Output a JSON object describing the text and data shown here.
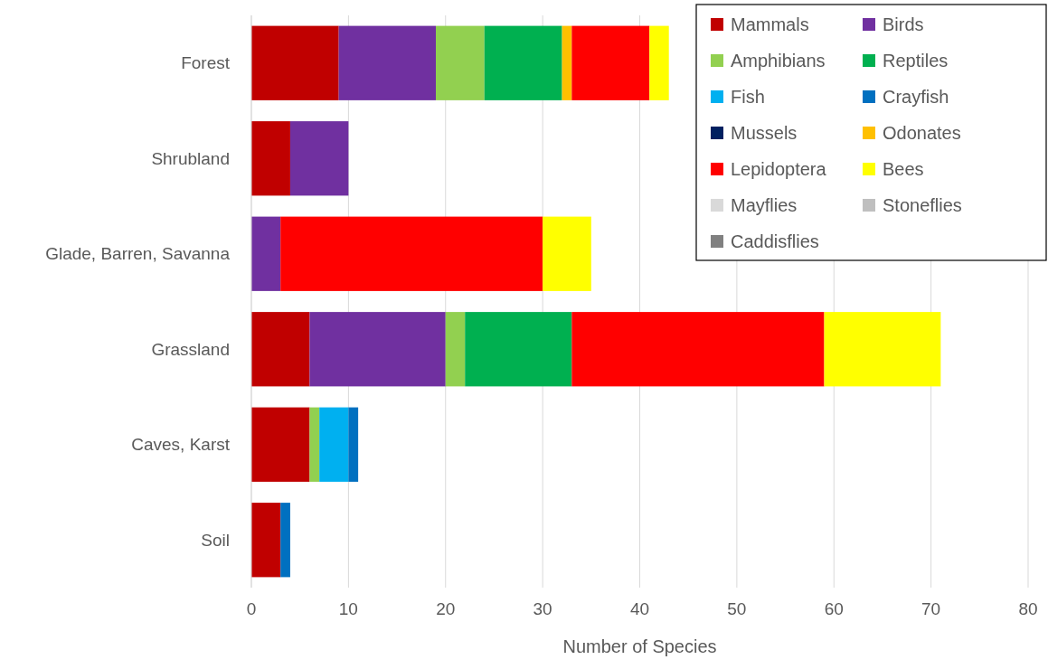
{
  "chart_data": {
    "type": "bar",
    "orientation": "horizontal",
    "stacked": true,
    "xlabel": "Number of Species",
    "categories": [
      "Forest",
      "Shrubland",
      "Glade, Barren, Savanna",
      "Grassland",
      "Caves, Karst",
      "Soil"
    ],
    "xlim": [
      0,
      80
    ],
    "xticks": [
      0,
      10,
      20,
      30,
      40,
      50,
      60,
      70,
      80
    ],
    "grid": "x",
    "legend": "top right",
    "series": [
      {
        "name": "Mammals",
        "color": "#c00000",
        "values": [
          9,
          4,
          0,
          6,
          6,
          3
        ]
      },
      {
        "name": "Birds",
        "color": "#7030a0",
        "values": [
          10,
          6,
          3,
          14,
          0,
          0
        ]
      },
      {
        "name": "Amphibians",
        "color": "#92d050",
        "values": [
          5,
          0,
          0,
          2,
          1,
          0
        ]
      },
      {
        "name": "Reptiles",
        "color": "#00b050",
        "values": [
          8,
          0,
          0,
          11,
          0,
          0
        ]
      },
      {
        "name": "Fish",
        "color": "#00b0f0",
        "values": [
          0,
          0,
          0,
          0,
          3,
          0
        ]
      },
      {
        "name": "Crayfish",
        "color": "#0070c0",
        "values": [
          0,
          0,
          0,
          0,
          1,
          1
        ]
      },
      {
        "name": "Mussels",
        "color": "#002060",
        "values": [
          0,
          0,
          0,
          0,
          0,
          0
        ]
      },
      {
        "name": "Odonates",
        "color": "#ffc000",
        "values": [
          1,
          0,
          0,
          0,
          0,
          0
        ]
      },
      {
        "name": "Lepidoptera",
        "color": "#ff0000",
        "values": [
          8,
          0,
          27,
          26,
          0,
          0
        ]
      },
      {
        "name": "Bees",
        "color": "#ffff00",
        "values": [
          2,
          0,
          5,
          12,
          0,
          0
        ]
      },
      {
        "name": "Mayflies",
        "color": "#d9d9d9",
        "values": [
          0,
          0,
          0,
          0,
          0,
          0
        ]
      },
      {
        "name": "Stoneflies",
        "color": "#bfbfbf",
        "values": [
          0,
          0,
          0,
          0,
          0,
          0
        ]
      },
      {
        "name": "Caddisflies",
        "color": "#808080",
        "values": [
          0,
          0,
          0,
          0,
          0,
          0
        ]
      }
    ]
  }
}
